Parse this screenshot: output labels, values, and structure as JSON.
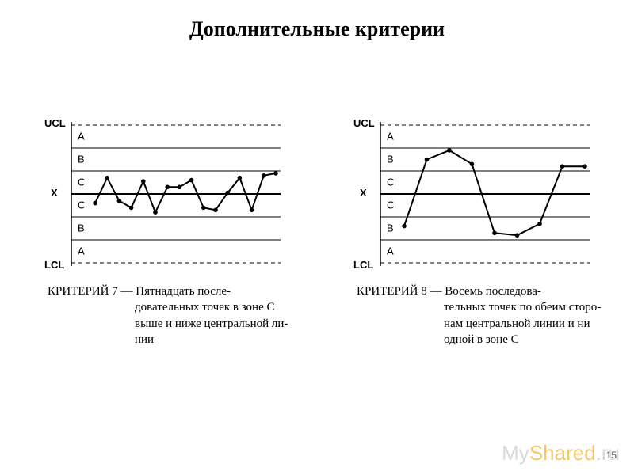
{
  "title": "Дополнительные критерии",
  "page_number": "15",
  "watermark": {
    "prefix": "My",
    "accent": "Shared",
    "suffix": ".ru"
  },
  "colors": {
    "background": "#ffffff",
    "stroke": "#000000",
    "dash": "#000000",
    "marker_fill": "#000000",
    "text": "#000000"
  },
  "chart_common": {
    "ucl_label": "UCL",
    "lcl_label": "LCL",
    "center_label": "X̄",
    "zones_top": [
      "A",
      "B",
      "C"
    ],
    "zones_bottom": [
      "C",
      "B",
      "A"
    ],
    "dash_pattern": "5,4",
    "zone_line_width": 1,
    "center_line_width": 2,
    "series_line_width": 2,
    "marker_radius": 2.8
  },
  "chart7": {
    "caption_label": "КРИТЕРИЙ 7",
    "caption_sep": " — ",
    "caption_text_first": "Пятнадцать после-",
    "caption_text_rest": "довательных точек в зоне С выше и ниже центральной ли- нии",
    "yrange": [
      -3,
      3
    ],
    "points": [
      -0.4,
      0.7,
      -0.3,
      -0.6,
      0.55,
      -0.8,
      0.3,
      0.3,
      0.6,
      -0.6,
      -0.7,
      0.05,
      0.7,
      -0.7,
      0.8,
      0.9
    ]
  },
  "chart8": {
    "caption_label": "КРИТЕРИЙ 8",
    "caption_sep": " — ",
    "caption_text_first": "Восемь последова-",
    "caption_text_rest": "тельных точек по обеим сторо- нам центральной линии и ни одной в зоне С",
    "yrange": [
      -3,
      3
    ],
    "points": [
      -1.4,
      1.5,
      1.9,
      1.3,
      -1.7,
      -1.8,
      -1.3,
      1.2,
      1.2
    ]
  }
}
